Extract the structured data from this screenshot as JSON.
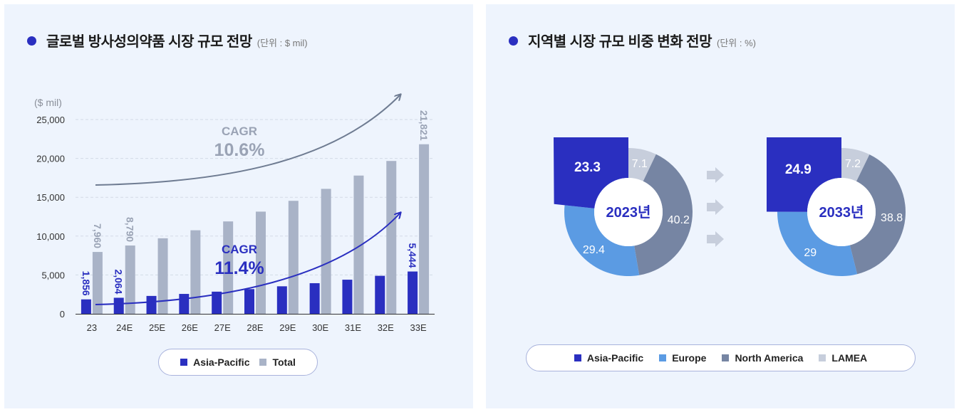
{
  "left": {
    "title": "글로벌 방사성의약품 시장 규모 전망",
    "unit": "(단위 : $ mil)",
    "yaxis_label": "($ mil)",
    "cagr_total": {
      "label": "CAGR",
      "value": "10.6%"
    },
    "cagr_ap": {
      "label": "CAGR",
      "value": "11.4%"
    },
    "legend": [
      "Asia-Pacific",
      "Total"
    ]
  },
  "right": {
    "title": "지역별 시장 규모 비중 변화 전망",
    "unit": "(단위 : %)",
    "legend": [
      "Asia-Pacific",
      "Europe",
      "North America",
      "LAMEA"
    ]
  },
  "colors": {
    "asia_pacific": "#2a2fc0",
    "total": "#a9b3c7",
    "europe": "#5b9be3",
    "north_america": "#7685a3",
    "lamea": "#c7cedc",
    "cagr_total": "#6f7c92"
  },
  "chart_data": [
    {
      "type": "bar",
      "title": "글로벌 방사성의약품 시장 규모 전망",
      "ylabel": "($ mil)",
      "ylim": [
        0,
        25000
      ],
      "yticks": [
        0,
        5000,
        10000,
        15000,
        20000,
        25000
      ],
      "ytick_labels": [
        "0",
        "5,000",
        "10,000",
        "15,000",
        "20,000",
        "25,000"
      ],
      "categories": [
        "23",
        "24E",
        "25E",
        "26E",
        "27E",
        "28E",
        "29E",
        "30E",
        "31E",
        "32E",
        "33E"
      ],
      "series": [
        {
          "name": "Asia-Pacific",
          "values": [
            1856,
            2064,
            2300,
            2560,
            2850,
            3180,
            3540,
            3940,
            4390,
            4890,
            5444
          ]
        },
        {
          "name": "Total",
          "values": [
            7960,
            8790,
            9720,
            10750,
            11890,
            13150,
            14540,
            16080,
            17790,
            19670,
            21821
          ]
        }
      ],
      "data_labels": {
        "Asia-Pacific": {
          "0": "1,856",
          "1": "2,064",
          "10": "5,444"
        },
        "Total": {
          "0": "7,960",
          "1": "8,790",
          "10": "21,821"
        }
      },
      "legend": "bottom-center"
    },
    {
      "type": "pie",
      "title": "2023년",
      "labels": [
        "Asia-Pacific",
        "Europe",
        "North America",
        "LAMEA"
      ],
      "values": [
        23.3,
        29.4,
        40.2,
        7.1
      ],
      "value_labels": [
        "23.3",
        "29.4",
        "40.2",
        "7.1"
      ]
    },
    {
      "type": "pie",
      "title": "2033년",
      "labels": [
        "Asia-Pacific",
        "Europe",
        "North America",
        "LAMEA"
      ],
      "values": [
        24.9,
        29,
        38.8,
        7.2
      ],
      "value_labels": [
        "24.9",
        "29",
        "38.8",
        "7.2"
      ]
    }
  ]
}
